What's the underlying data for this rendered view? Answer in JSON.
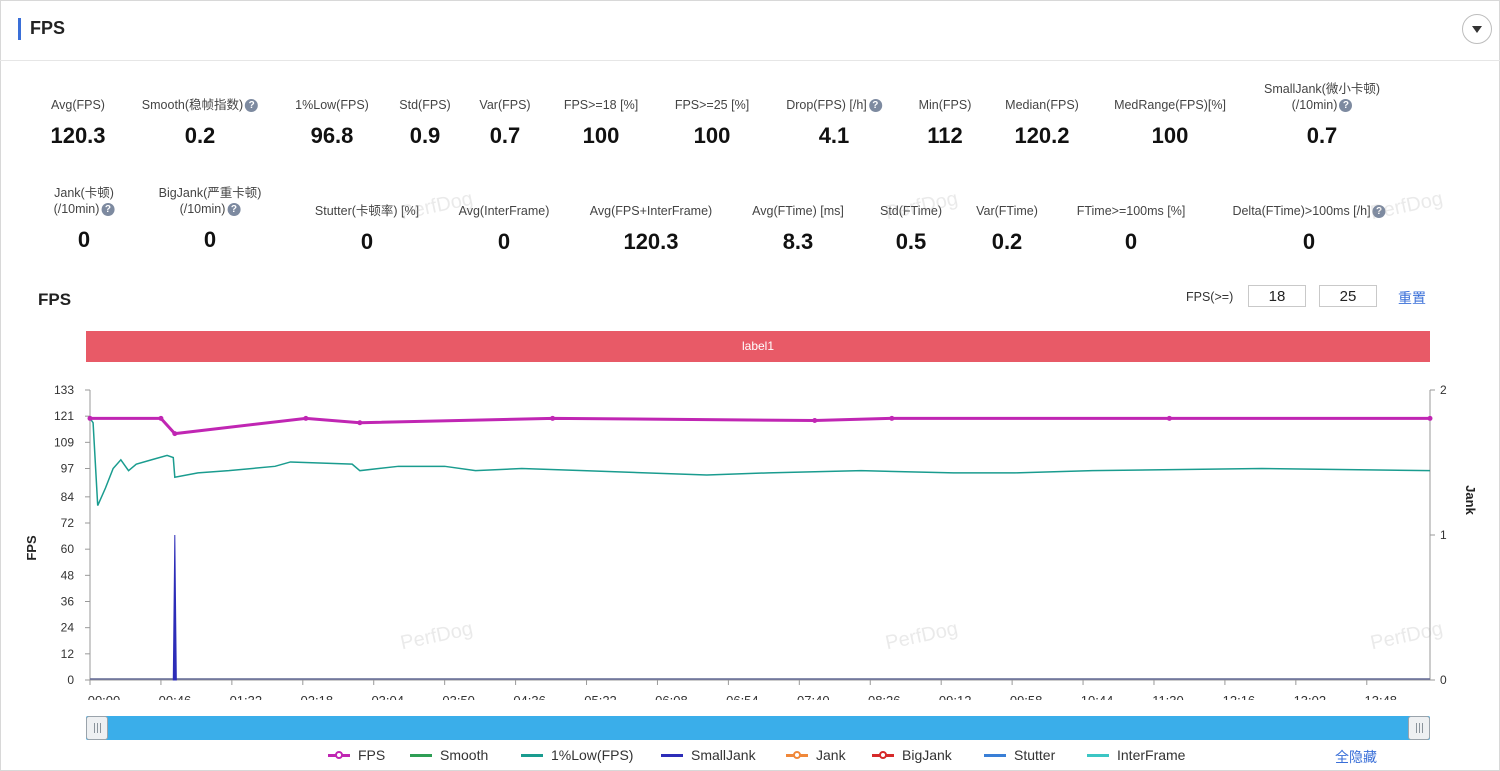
{
  "header": {
    "title": "FPS"
  },
  "metrics_row1": [
    {
      "label": "Avg(FPS)",
      "value": "120.3",
      "help": false
    },
    {
      "label": "Smooth(稳帧指数)",
      "value": "0.2",
      "help": true
    },
    {
      "label": "1%Low(FPS)",
      "value": "96.8",
      "help": false
    },
    {
      "label": "Std(FPS)",
      "value": "0.9",
      "help": false
    },
    {
      "label": "Var(FPS)",
      "value": "0.7",
      "help": false
    },
    {
      "label": "FPS>=18 [%]",
      "value": "100",
      "help": false
    },
    {
      "label": "FPS>=25 [%]",
      "value": "100",
      "help": false
    },
    {
      "label": "Drop(FPS) [/h]",
      "value": "4.1",
      "help": true
    },
    {
      "label": "Min(FPS)",
      "value": "112",
      "help": false
    },
    {
      "label": "Median(FPS)",
      "value": "120.2",
      "help": false
    },
    {
      "label": "MedRange(FPS)[%]",
      "value": "100",
      "help": false
    },
    {
      "label": "SmallJank(微小卡顿)",
      "label2": "(/10min)",
      "value": "0.7",
      "help": true
    }
  ],
  "metrics_row2": [
    {
      "label": "Jank(卡顿)",
      "label2": "(/10min)",
      "value": "0",
      "help": true
    },
    {
      "label": "BigJank(严重卡顿)",
      "label2": "(/10min)",
      "value": "0",
      "help": true
    },
    {
      "label": "Stutter(卡顿率) [%]",
      "value": "0",
      "help": false
    },
    {
      "label": "Avg(InterFrame)",
      "value": "0",
      "help": false
    },
    {
      "label": "Avg(FPS+InterFrame)",
      "value": "120.3",
      "help": false
    },
    {
      "label": "Avg(FTime) [ms]",
      "value": "8.3",
      "help": false
    },
    {
      "label": "Std(FTime)",
      "value": "0.5",
      "help": false
    },
    {
      "label": "Var(FTime)",
      "value": "0.2",
      "help": false
    },
    {
      "label": "FTime>=100ms [%]",
      "value": "0",
      "help": false
    },
    {
      "label": "Delta(FTime)>100ms [/h]",
      "value": "0",
      "help": true
    }
  ],
  "chart_section": {
    "title": "FPS",
    "filter_label": "FPS(>=)",
    "threshold_1": "18",
    "threshold_2": "25",
    "reset_label": "重置",
    "label_bar": "label1",
    "hide_all_label": "全隐藏"
  },
  "watermark": "PerfDog",
  "chart_data": {
    "type": "line",
    "ylabel": "FPS",
    "y2label": "Jank",
    "y_ticks": [
      "0",
      "12",
      "24",
      "36",
      "48",
      "60",
      "72",
      "84",
      "97",
      "109",
      "121",
      "133"
    ],
    "y_range": [
      0,
      133
    ],
    "y2_ticks": [
      "0",
      "1",
      "2"
    ],
    "y2_range": [
      0,
      2
    ],
    "x_ticks": [
      "00:00",
      "00:46",
      "01:32",
      "02:18",
      "03:04",
      "03:50",
      "04:36",
      "05:22",
      "06:08",
      "06:54",
      "07:40",
      "08:26",
      "09:12",
      "09:58",
      "10:44",
      "11:30",
      "12:16",
      "13:02",
      "13:48"
    ],
    "x_range_seconds": [
      0,
      869
    ],
    "legend": [
      "FPS",
      "Smooth",
      "1%Low(FPS)",
      "SmallJank",
      "Jank",
      "BigJank",
      "Stutter",
      "InterFrame"
    ],
    "colors": {
      "FPS": "#c026b3",
      "Smooth": "#2e9e55",
      "1%Low(FPS)": "#1a9c8f",
      "SmallJank": "#2d2db8",
      "Jank": "#f0883a",
      "BigJank": "#d62a2a",
      "Stutter": "#3a7fd6",
      "InterFrame": "#3cc6c4"
    },
    "series": [
      {
        "name": "FPS",
        "x": [
          0,
          46,
          55,
          140,
          175,
          300,
          470,
          520,
          700,
          869
        ],
        "y": [
          120,
          120,
          113,
          120,
          118,
          120,
          119,
          120,
          120,
          120
        ]
      },
      {
        "name": "1%Low(FPS)",
        "x": [
          0,
          2,
          5,
          10,
          15,
          20,
          25,
          30,
          40,
          50,
          54,
          55,
          70,
          90,
          120,
          130,
          170,
          175,
          200,
          230,
          250,
          280,
          320,
          400,
          440,
          500,
          560,
          600,
          650,
          760,
          869
        ],
        "y": [
          120,
          118,
          80,
          88,
          97,
          101,
          96,
          99,
          101,
          103,
          102,
          93,
          95,
          96,
          98,
          100,
          99,
          96,
          98,
          98,
          96,
          97,
          96,
          94,
          95,
          96,
          95,
          95,
          96,
          97,
          96
        ]
      },
      {
        "name": "SmallJank",
        "x": [
          54,
          55,
          56
        ],
        "y": [
          0,
          1,
          0
        ]
      },
      {
        "name": "Smooth",
        "x": [
          0,
          869
        ],
        "y": [
          0,
          0
        ]
      },
      {
        "name": "Jank",
        "x": [
          0,
          869
        ],
        "y": [
          0,
          0
        ]
      },
      {
        "name": "BigJank",
        "x": [
          0,
          869
        ],
        "y": [
          0,
          0
        ]
      },
      {
        "name": "Stutter",
        "x": [
          0,
          869
        ],
        "y": [
          0,
          0
        ]
      }
    ]
  }
}
